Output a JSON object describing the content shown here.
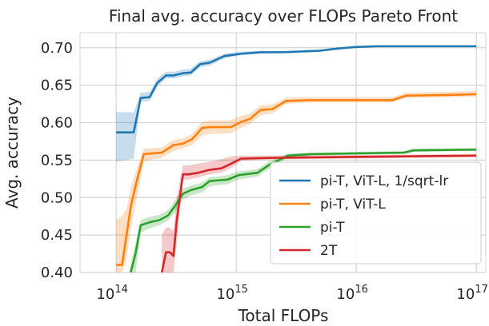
{
  "chart_data": {
    "type": "line",
    "title": "Final avg. accuracy over FLOPs Pareto Front",
    "xlabel": "Total FLOPs",
    "ylabel": "Avg. accuracy",
    "xscale": "log",
    "xlim": [
      50000000000000.0,
      1.2e+17
    ],
    "ylim": [
      0.4,
      0.72
    ],
    "xticks": [
      {
        "value": 100000000000000.0,
        "base": "10",
        "exp": "14"
      },
      {
        "value": 1000000000000000.0,
        "base": "10",
        "exp": "15"
      },
      {
        "value": 1e+16,
        "base": "10",
        "exp": "16"
      },
      {
        "value": 1e+17,
        "base": "10",
        "exp": "17"
      }
    ],
    "yticks": [
      {
        "value": 0.4,
        "label": "0.40"
      },
      {
        "value": 0.45,
        "label": "0.45"
      },
      {
        "value": 0.5,
        "label": "0.50"
      },
      {
        "value": 0.55,
        "label": "0.55"
      },
      {
        "value": 0.6,
        "label": "0.60"
      },
      {
        "value": 0.65,
        "label": "0.65"
      },
      {
        "value": 0.7,
        "label": "0.70"
      }
    ],
    "grid": true,
    "legend_position": "center-right",
    "series": [
      {
        "name": "pi-T, ViT-L, 1/sqrt-lr",
        "color": "#1f77b4",
        "x": [
          100000000000000.0,
          140000000000000.0,
          160000000000000.0,
          190000000000000.0,
          220000000000000.0,
          260000000000000.0,
          300000000000000.0,
          360000000000000.0,
          420000000000000.0,
          500000000000000.0,
          600000000000000.0,
          800000000000000.0,
          1100000000000000.0,
          1600000000000000.0,
          2500000000000000.0,
          5000000000000000.0,
          7000000000000000.0,
          1e+16,
          1.5e+16,
          3e+16,
          1e+17
        ],
        "y": [
          0.587,
          0.587,
          0.633,
          0.634,
          0.653,
          0.663,
          0.663,
          0.666,
          0.667,
          0.678,
          0.68,
          0.689,
          0.692,
          0.694,
          0.694,
          0.696,
          0.699,
          0.701,
          0.702,
          0.702,
          0.702
        ],
        "lower": [
          0.548,
          0.552,
          0.628,
          0.629,
          0.648,
          0.659,
          0.659,
          0.662,
          0.663,
          0.674,
          0.676,
          0.686,
          0.69,
          0.692,
          0.693,
          0.695,
          0.698,
          0.7,
          0.701,
          0.701,
          0.701
        ],
        "upper": [
          0.614,
          0.614,
          0.64,
          0.641,
          0.659,
          0.668,
          0.668,
          0.671,
          0.672,
          0.682,
          0.684,
          0.692,
          0.695,
          0.696,
          0.696,
          0.698,
          0.7,
          0.702,
          0.703,
          0.703,
          0.703
        ]
      },
      {
        "name": "pi-T, ViT-L",
        "color": "#ff7f0e",
        "x": [
          100000000000000.0,
          112000000000000.0,
          122000000000000.0,
          133000000000000.0,
          150000000000000.0,
          170000000000000.0,
          200000000000000.0,
          240000000000000.0,
          300000000000000.0,
          360000000000000.0,
          430000000000000.0,
          520000000000000.0,
          600000000000000.0,
          700000000000000.0,
          900000000000000.0,
          1100000000000000.0,
          1300000000000000.0,
          1600000000000000.0,
          2000000000000000.0,
          2600000000000000.0,
          4000000000000000.0,
          2e+16,
          2.6e+16,
          6e+16,
          1e+17
        ],
        "y": [
          0.41,
          0.41,
          0.45,
          0.49,
          0.525,
          0.558,
          0.559,
          0.56,
          0.57,
          0.572,
          0.578,
          0.593,
          0.594,
          0.594,
          0.594,
          0.601,
          0.605,
          0.617,
          0.618,
          0.629,
          0.63,
          0.63,
          0.636,
          0.637,
          0.638
        ],
        "lower": [
          0.4,
          0.4,
          0.418,
          0.46,
          0.503,
          0.548,
          0.551,
          0.553,
          0.562,
          0.566,
          0.57,
          0.583,
          0.585,
          0.585,
          0.586,
          0.593,
          0.598,
          0.61,
          0.612,
          0.625,
          0.627,
          0.627,
          0.633,
          0.634,
          0.635
        ],
        "upper": [
          0.47,
          0.475,
          0.485,
          0.515,
          0.54,
          0.565,
          0.566,
          0.567,
          0.577,
          0.579,
          0.585,
          0.601,
          0.603,
          0.603,
          0.603,
          0.609,
          0.612,
          0.623,
          0.624,
          0.633,
          0.634,
          0.634,
          0.64,
          0.641,
          0.642
        ]
      },
      {
        "name": "pi-T",
        "color": "#2ca02c",
        "x": [
          132000000000000.0,
          145000000000000.0,
          160000000000000.0,
          190000000000000.0,
          230000000000000.0,
          270000000000000.0,
          310000000000000.0,
          360000000000000.0,
          420000000000000.0,
          520000000000000.0,
          600000000000000.0,
          850000000000000.0,
          1050000000000000.0,
          1500000000000000.0,
          1900000000000000.0,
          2200000000000000.0,
          2700000000000000.0,
          4200000000000000.0,
          2.5e+16,
          3e+16,
          1e+17
        ],
        "y": [
          0.4,
          0.425,
          0.463,
          0.467,
          0.47,
          0.476,
          0.489,
          0.505,
          0.51,
          0.514,
          0.522,
          0.524,
          0.53,
          0.533,
          0.544,
          0.549,
          0.556,
          0.558,
          0.56,
          0.563,
          0.564
        ],
        "lower": [
          0.4,
          0.4,
          0.453,
          0.459,
          0.463,
          0.469,
          0.48,
          0.497,
          0.503,
          0.507,
          0.515,
          0.518,
          0.524,
          0.528,
          0.539,
          0.545,
          0.553,
          0.556,
          0.558,
          0.561,
          0.562
        ],
        "upper": [
          0.41,
          0.44,
          0.47,
          0.474,
          0.477,
          0.483,
          0.497,
          0.512,
          0.516,
          0.52,
          0.527,
          0.53,
          0.535,
          0.538,
          0.549,
          0.553,
          0.559,
          0.56,
          0.562,
          0.565,
          0.566
        ]
      },
      {
        "name": "2T",
        "color": "#d62728",
        "x": [
          240000000000000.0,
          260000000000000.0,
          280000000000000.0,
          300000000000000.0,
          320000000000000.0,
          360000000000000.0,
          400000000000000.0,
          480000000000000.0,
          600000000000000.0,
          750000000000000.0,
          900000000000000.0,
          1100000000000000.0,
          2000000000000000.0,
          1e+17
        ],
        "y": [
          0.4,
          0.427,
          0.427,
          0.422,
          0.47,
          0.531,
          0.531,
          0.533,
          0.537,
          0.539,
          0.545,
          0.552,
          0.553,
          0.556
        ],
        "lower": [
          0.4,
          0.4,
          0.4,
          0.4,
          0.44,
          0.524,
          0.524,
          0.527,
          0.531,
          0.533,
          0.539,
          0.549,
          0.551,
          0.554
        ],
        "upper": [
          0.45,
          0.46,
          0.46,
          0.455,
          0.5,
          0.543,
          0.543,
          0.545,
          0.548,
          0.551,
          0.555,
          0.556,
          0.556,
          0.558
        ]
      }
    ]
  }
}
